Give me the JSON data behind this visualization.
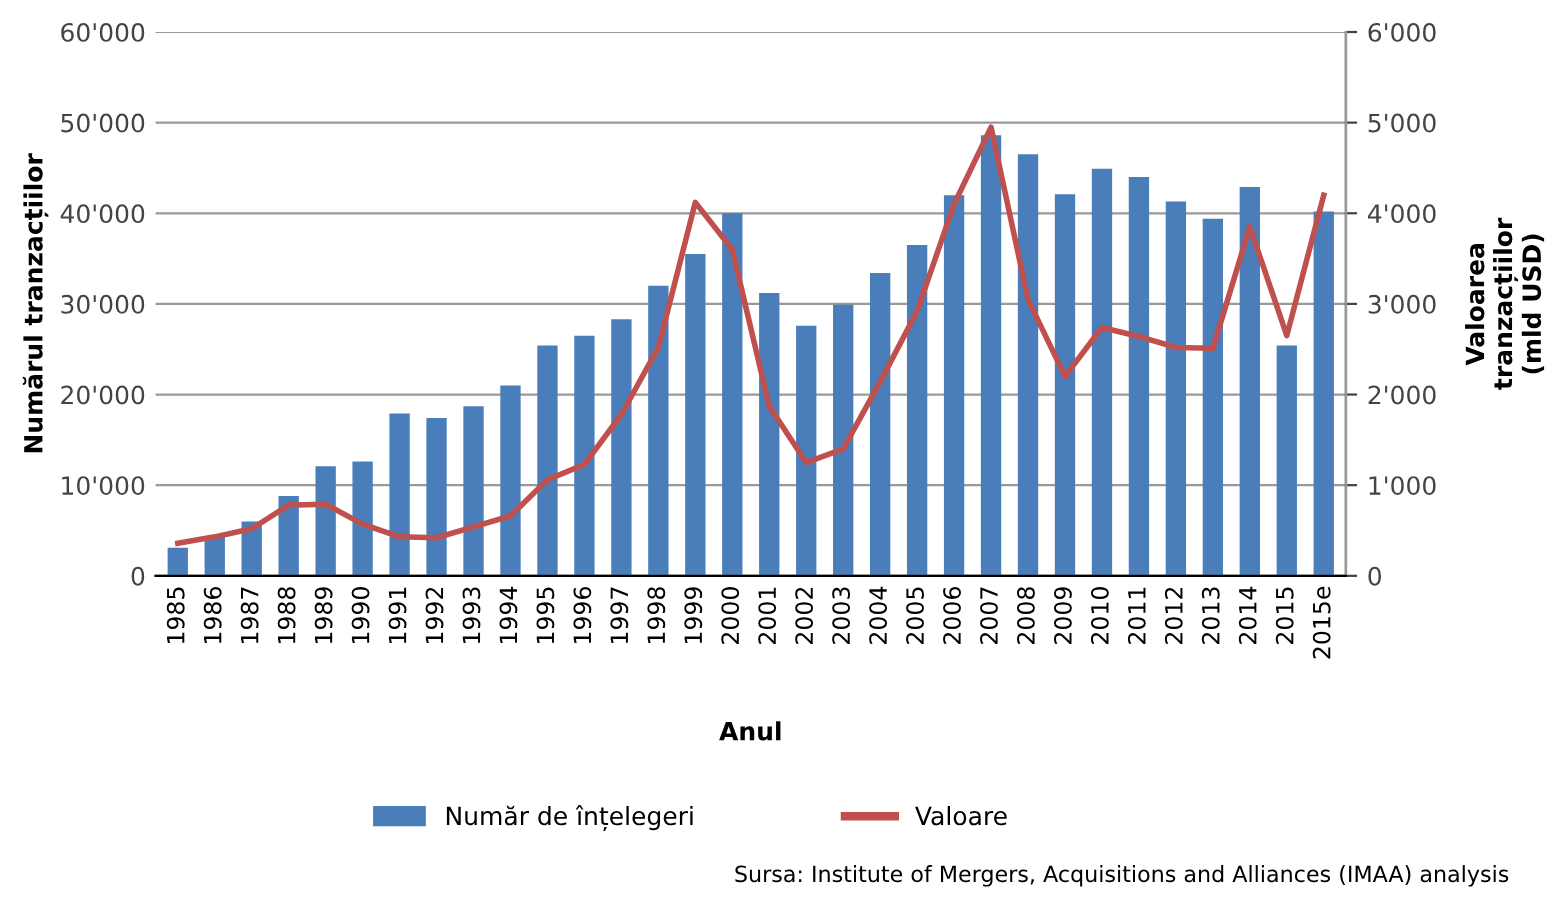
{
  "chart_data": {
    "type": "bar",
    "xlabel": "Anul",
    "ylabel": "Numărul tranzacțiilor",
    "y2label": "Valoarea\ntranzacțiilor\n(mld USD)",
    "categories": [
      "1985",
      "1986",
      "1987",
      "1988",
      "1989",
      "1990",
      "1991",
      "1992",
      "1993",
      "1994",
      "1995",
      "1996",
      "1997",
      "1998",
      "1999",
      "2000",
      "2001",
      "2002",
      "2003",
      "2004",
      "2005",
      "2006",
      "2007",
      "2008",
      "2009",
      "2010",
      "2011",
      "2012",
      "2013",
      "2014",
      "2015",
      "2015e"
    ],
    "series": [
      {
        "name": "Număr de înțelegeri",
        "color": "#4a7ebb",
        "values": [
          3100,
          4400,
          6000,
          8800,
          12100,
          12600,
          17900,
          17400,
          18700,
          21000,
          25400,
          26500,
          28300,
          32000,
          35500,
          40000,
          31200,
          27600,
          29900,
          33400,
          36500,
          42000,
          48600,
          46500,
          42100,
          44900,
          44000,
          41300,
          39400,
          42900,
          25400,
          40200
        ]
      },
      {
        "name": "Valoare",
        "type": "line",
        "axis": "y2",
        "color": "#c0504d",
        "values": [
          360,
          430,
          520,
          780,
          790,
          570,
          430,
          420,
          540,
          660,
          1060,
          1230,
          1780,
          2520,
          4120,
          3600,
          1870,
          1250,
          1400,
          2140,
          2920,
          4100,
          4950,
          3050,
          2200,
          2740,
          2640,
          2520,
          2510,
          3850,
          2650,
          4200
        ]
      }
    ],
    "ylim": [
      0,
      60000
    ],
    "yticks": [
      0,
      {
        "value": 10000,
        "label": "10'000"
      },
      {
        "value": 20000,
        "label": "20'000"
      },
      {
        "value": 30000,
        "label": "30'000"
      },
      {
        "value": 40000,
        "label": "40'000"
      },
      {
        "value": 50000,
        "label": "50'000"
      },
      {
        "value": 60000,
        "label": "60'000"
      }
    ],
    "y2lim": [
      0,
      6000
    ],
    "y2ticks": [
      0,
      {
        "value": 1000,
        "label": "1'000"
      },
      {
        "value": 2000,
        "label": "2'000"
      },
      {
        "value": 3000,
        "label": "3'000"
      },
      {
        "value": 4000,
        "label": "4'000"
      },
      {
        "value": 5000,
        "label": "5'000"
      },
      {
        "value": 6000,
        "label": "6'000"
      }
    ],
    "grid": "y",
    "legend": "bottom",
    "marker": "none",
    "line_style": "solid",
    "annotations": [
      "Sursa: Institute of Mergers, Acquisitions and Alliances (IMAA) analysis"
    ]
  }
}
